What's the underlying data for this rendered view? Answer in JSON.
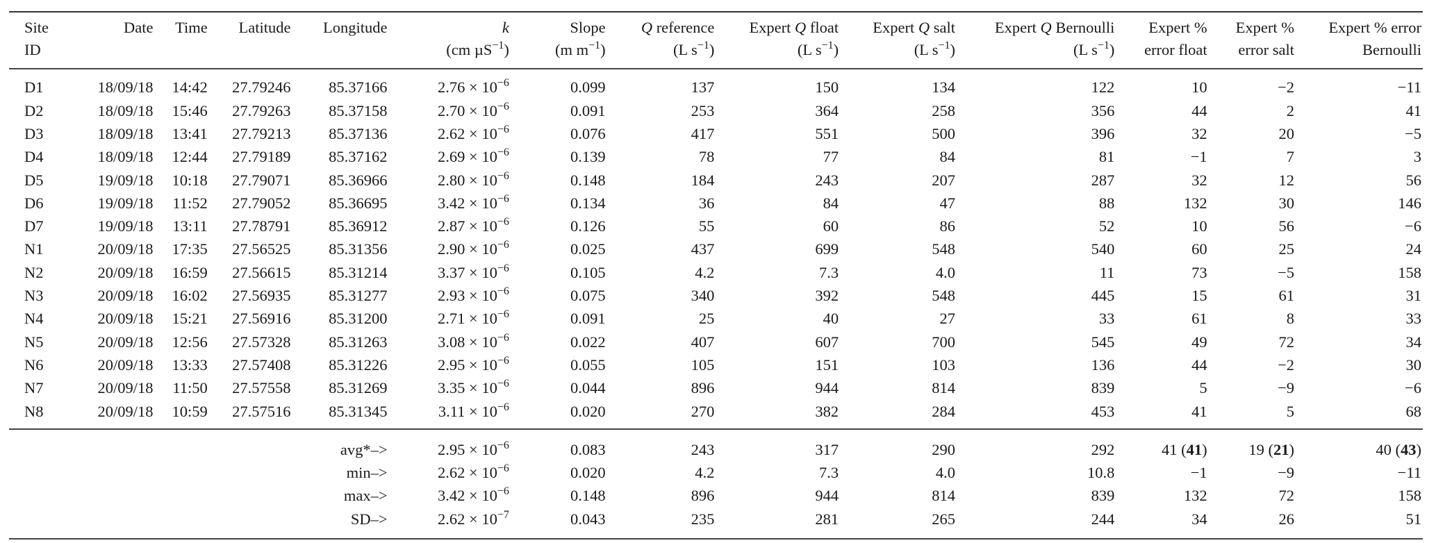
{
  "table": {
    "headers": [
      {
        "line1": "Site",
        "line2": "ID"
      },
      {
        "line1": "Date",
        "line2": ""
      },
      {
        "line1": "Time",
        "line2": ""
      },
      {
        "line1": "Latitude",
        "line2": ""
      },
      {
        "line1": "Longitude",
        "line2": ""
      },
      {
        "line1_italic": "k",
        "line2_base": "(cm µS",
        "line2_sup": "−1",
        "line2_end": ")"
      },
      {
        "line1": "Slope",
        "line2_base": "(m m",
        "line2_sup": "−1",
        "line2_end": ")"
      },
      {
        "line1_italic": "Q",
        "line1_rest": " reference",
        "line2_base": "(L s",
        "line2_sup": "−1",
        "line2_end": ")"
      },
      {
        "line1_pre": "Expert ",
        "line1_italic": "Q",
        "line1_rest": " float",
        "line2_base": "(L s",
        "line2_sup": "−1",
        "line2_end": ")"
      },
      {
        "line1_pre": "Expert ",
        "line1_italic": "Q",
        "line1_rest": " salt",
        "line2_base": "(L s",
        "line2_sup": "−1",
        "line2_end": ")"
      },
      {
        "line1_pre": "Expert ",
        "line1_italic": "Q",
        "line1_rest": " Bernoulli",
        "line2_base": "(L s",
        "line2_sup": "−1",
        "line2_end": ")"
      },
      {
        "line1": "Expert %",
        "line2": "error float"
      },
      {
        "line1": "Expert %",
        "line2": "error salt"
      },
      {
        "line1": "Expert % error",
        "line2": "Bernoulli"
      }
    ],
    "rows": [
      {
        "site": "D1",
        "date": "18/09/18",
        "time": "14:42",
        "lat": "27.79246",
        "lon": "85.37166",
        "k_mant": "2.76",
        "k_exp": "−6",
        "slope": "0.099",
        "qref": "137",
        "qfloat": "150",
        "qsalt": "134",
        "qbern": "122",
        "efloat": "10",
        "esalt": "−2",
        "ebern": "−11"
      },
      {
        "site": "D2",
        "date": "18/09/18",
        "time": "15:46",
        "lat": "27.79263",
        "lon": "85.37158",
        "k_mant": "2.70",
        "k_exp": "−6",
        "slope": "0.091",
        "qref": "253",
        "qfloat": "364",
        "qsalt": "258",
        "qbern": "356",
        "efloat": "44",
        "esalt": "2",
        "ebern": "41"
      },
      {
        "site": "D3",
        "date": "18/09/18",
        "time": "13:41",
        "lat": "27.79213",
        "lon": "85.37136",
        "k_mant": "2.62",
        "k_exp": "−6",
        "slope": "0.076",
        "qref": "417",
        "qfloat": "551",
        "qsalt": "500",
        "qbern": "396",
        "efloat": "32",
        "esalt": "20",
        "ebern": "−5"
      },
      {
        "site": "D4",
        "date": "18/09/18",
        "time": "12:44",
        "lat": "27.79189",
        "lon": "85.37162",
        "k_mant": "2.69",
        "k_exp": "−6",
        "slope": "0.139",
        "qref": "78",
        "qfloat": "77",
        "qsalt": "84",
        "qbern": "81",
        "efloat": "−1",
        "esalt": "7",
        "ebern": "3"
      },
      {
        "site": "D5",
        "date": "19/09/18",
        "time": "10:18",
        "lat": "27.79071",
        "lon": "85.36966",
        "k_mant": "2.80",
        "k_exp": "−6",
        "slope": "0.148",
        "qref": "184",
        "qfloat": "243",
        "qsalt": "207",
        "qbern": "287",
        "efloat": "32",
        "esalt": "12",
        "ebern": "56"
      },
      {
        "site": "D6",
        "date": "19/09/18",
        "time": "11:52",
        "lat": "27.79052",
        "lon": "85.36695",
        "k_mant": "3.42",
        "k_exp": "−6",
        "slope": "0.134",
        "qref": "36",
        "qfloat": "84",
        "qsalt": "47",
        "qbern": "88",
        "efloat": "132",
        "esalt": "30",
        "ebern": "146"
      },
      {
        "site": "D7",
        "date": "19/09/18",
        "time": "13:11",
        "lat": "27.78791",
        "lon": "85.36912",
        "k_mant": "2.87",
        "k_exp": "−6",
        "slope": "0.126",
        "qref": "55",
        "qfloat": "60",
        "qsalt": "86",
        "qbern": "52",
        "efloat": "10",
        "esalt": "56",
        "ebern": "−6"
      },
      {
        "site": "N1",
        "date": "20/09/18",
        "time": "17:35",
        "lat": "27.56525",
        "lon": "85.31356",
        "k_mant": "2.90",
        "k_exp": "−6",
        "slope": "0.025",
        "qref": "437",
        "qfloat": "699",
        "qsalt": "548",
        "qbern": "540",
        "efloat": "60",
        "esalt": "25",
        "ebern": "24"
      },
      {
        "site": "N2",
        "date": "20/09/18",
        "time": "16:59",
        "lat": "27.56615",
        "lon": "85.31214",
        "k_mant": "3.37",
        "k_exp": "−6",
        "slope": "0.105",
        "qref": "4.2",
        "qfloat": "7.3",
        "qsalt": "4.0",
        "qbern": "11",
        "efloat": "73",
        "esalt": "−5",
        "ebern": "158"
      },
      {
        "site": "N3",
        "date": "20/09/18",
        "time": "16:02",
        "lat": "27.56935",
        "lon": "85.31277",
        "k_mant": "2.93",
        "k_exp": "−6",
        "slope": "0.075",
        "qref": "340",
        "qfloat": "392",
        "qsalt": "548",
        "qbern": "445",
        "efloat": "15",
        "esalt": "61",
        "ebern": "31"
      },
      {
        "site": "N4",
        "date": "20/09/18",
        "time": "15:21",
        "lat": "27.56916",
        "lon": "85.31200",
        "k_mant": "2.71",
        "k_exp": "−6",
        "slope": "0.091",
        "qref": "25",
        "qfloat": "40",
        "qsalt": "27",
        "qbern": "33",
        "efloat": "61",
        "esalt": "8",
        "ebern": "33"
      },
      {
        "site": "N5",
        "date": "20/09/18",
        "time": "12:56",
        "lat": "27.57328",
        "lon": "85.31263",
        "k_mant": "3.08",
        "k_exp": "−6",
        "slope": "0.022",
        "qref": "407",
        "qfloat": "607",
        "qsalt": "700",
        "qbern": "545",
        "efloat": "49",
        "esalt": "72",
        "ebern": "34"
      },
      {
        "site": "N6",
        "date": "20/09/18",
        "time": "13:33",
        "lat": "27.57408",
        "lon": "85.31226",
        "k_mant": "2.95",
        "k_exp": "−6",
        "slope": "0.055",
        "qref": "105",
        "qfloat": "151",
        "qsalt": "103",
        "qbern": "136",
        "efloat": "44",
        "esalt": "−2",
        "ebern": "30"
      },
      {
        "site": "N7",
        "date": "20/09/18",
        "time": "11:50",
        "lat": "27.57558",
        "lon": "85.31269",
        "k_mant": "3.35",
        "k_exp": "−6",
        "slope": "0.044",
        "qref": "896",
        "qfloat": "944",
        "qsalt": "814",
        "qbern": "839",
        "efloat": "5",
        "esalt": "−9",
        "ebern": "−6"
      },
      {
        "site": "N8",
        "date": "20/09/18",
        "time": "10:59",
        "lat": "27.57516",
        "lon": "85.31345",
        "k_mant": "3.11",
        "k_exp": "−6",
        "slope": "0.020",
        "qref": "270",
        "qfloat": "382",
        "qsalt": "284",
        "qbern": "453",
        "efloat": "41",
        "esalt": "5",
        "ebern": "68"
      }
    ],
    "stats": [
      {
        "label": "avg*–>",
        "k_mant": "2.95",
        "k_exp": "−6",
        "slope": "0.083",
        "qref": "243",
        "qfloat": "317",
        "qsalt": "290",
        "qbern": "292",
        "efloat": "41",
        "efloat_bold": "41",
        "esalt": "19",
        "esalt_bold": "21",
        "ebern": "40",
        "ebern_bold": "43"
      },
      {
        "label": "min–>",
        "k_mant": "2.62",
        "k_exp": "−6",
        "slope": "0.020",
        "qref": "4.2",
        "qfloat": "7.3",
        "qsalt": "4.0",
        "qbern": "10.8",
        "efloat": "−1",
        "esalt": "−9",
        "ebern": "−11"
      },
      {
        "label": "max–>",
        "k_mant": "3.42",
        "k_exp": "−6",
        "slope": "0.148",
        "qref": "896",
        "qfloat": "944",
        "qsalt": "814",
        "qbern": "839",
        "efloat": "132",
        "esalt": "72",
        "ebern": "158"
      },
      {
        "label": "SD–>",
        "k_mant": "2.62",
        "k_exp": "−7",
        "slope": "0.043",
        "qref": "235",
        "qfloat": "281",
        "qsalt": "265",
        "qbern": "244",
        "efloat": "34",
        "esalt": "26",
        "ebern": "51"
      }
    ],
    "times_sign": " × 10",
    "paren_open": " (",
    "paren_close": ")"
  }
}
